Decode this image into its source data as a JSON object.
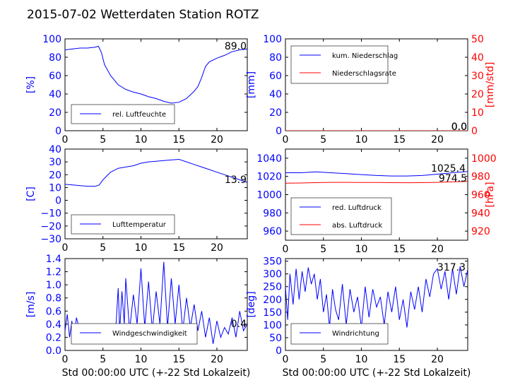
{
  "title": "2015-07-02 Wetterdaten Station ROTZ",
  "xlabel": "Std 00:00:00 UTC (+-22 Std Lokalzeit)",
  "colors": {
    "blue": "#0000ff",
    "red": "#ff0000",
    "black": "#000000"
  },
  "chart_data": [
    {
      "type": "line",
      "ylabel": "[%]",
      "ylim": [
        0,
        100
      ],
      "yticks": [
        "0",
        "20",
        "40",
        "60",
        "80",
        "100"
      ],
      "xlim": [
        0,
        24
      ],
      "xticks": [
        "0",
        "5",
        "10",
        "15",
        "20"
      ],
      "legend": [
        "rel. Luftfeuchte"
      ],
      "annotation": "89.0",
      "series": [
        {
          "name": "rel. Luftfeuchte",
          "color": "blue",
          "x": [
            0,
            1,
            2,
            3,
            4,
            4.4,
            4.8,
            5.2,
            6,
            7,
            8,
            9,
            10,
            11,
            12,
            13,
            14,
            15,
            16,
            17,
            17.5,
            18,
            18.5,
            19,
            20,
            21,
            22,
            23,
            24
          ],
          "values": [
            88,
            89,
            90,
            90,
            91,
            92,
            85,
            72,
            60,
            50,
            45,
            42,
            40,
            37,
            35,
            32,
            30,
            31,
            35,
            43,
            48,
            58,
            70,
            75,
            79,
            82,
            86,
            88,
            89
          ]
        }
      ]
    },
    {
      "type": "line",
      "ylabel": "[mm]",
      "ylim": [
        0,
        100
      ],
      "yticks": [
        "0",
        "20",
        "40",
        "60",
        "80",
        "100"
      ],
      "ylabel2": "[mm/std]",
      "ylim2": [
        0,
        50
      ],
      "yticks2": [
        "0",
        "10",
        "20",
        "30",
        "40",
        "50"
      ],
      "xlim": [
        0,
        24
      ],
      "xticks": [
        "0",
        "5",
        "10",
        "15",
        "20"
      ],
      "legend": [
        "kum. Niederschlag",
        "Niederschlagsrate"
      ],
      "annotation": "0.0",
      "annotation2": "0.0",
      "series": [
        {
          "name": "kum. Niederschlag",
          "color": "blue",
          "x": [
            0,
            24
          ],
          "values": [
            0,
            0
          ]
        },
        {
          "name": "Niederschlagsrate",
          "color": "red",
          "axis": 2,
          "x": [
            0,
            24
          ],
          "values": [
            0,
            0
          ]
        }
      ]
    },
    {
      "type": "line",
      "ylabel": "[C]",
      "ylim": [
        -30,
        40
      ],
      "yticks": [
        "−30",
        "−20",
        "−10",
        "0",
        "10",
        "20",
        "30",
        "40"
      ],
      "xlim": [
        0,
        24
      ],
      "xticks": [
        "0",
        "5",
        "10",
        "15",
        "20"
      ],
      "legend": [
        "Lufttemperatur"
      ],
      "annotation": "13.9",
      "series": [
        {
          "name": "Lufttemperatur",
          "color": "blue",
          "x": [
            0,
            1,
            2,
            3,
            4,
            4.5,
            5,
            5.5,
            6,
            7,
            8,
            9,
            10,
            11,
            12,
            13,
            14,
            15,
            16,
            17,
            18,
            19,
            20,
            21,
            22,
            23,
            24
          ],
          "values": [
            12.5,
            12,
            11.5,
            11,
            11,
            12,
            16,
            19,
            22,
            25,
            26,
            27,
            29,
            30,
            30.5,
            31,
            31.5,
            32,
            30,
            28,
            26,
            24,
            22,
            20,
            18,
            16,
            14
          ]
        }
      ]
    },
    {
      "type": "line",
      "ylim": [
        950,
        1050
      ],
      "yticks": [
        "960",
        "980",
        "1000",
        "1020",
        "1040"
      ],
      "ylabel2": "[hPa]",
      "ylim2": [
        910,
        1010
      ],
      "yticks2": [
        "920",
        "940",
        "960",
        "980",
        "1000"
      ],
      "xlim": [
        0,
        24
      ],
      "xticks": [
        "0",
        "5",
        "10",
        "15",
        "20"
      ],
      "legend": [
        "red. Luftdruck",
        "abs. Luftdruck"
      ],
      "annotation": "1025.4",
      "annotation2": "974.5",
      "series": [
        {
          "name": "red. Luftdruck",
          "color": "blue",
          "x": [
            0,
            2,
            4,
            6,
            8,
            10,
            12,
            14,
            16,
            18,
            20,
            22,
            24
          ],
          "values": [
            1024,
            1024,
            1025,
            1024,
            1023,
            1022,
            1021,
            1020.5,
            1020.5,
            1021,
            1022.5,
            1024,
            1025.4
          ]
        },
        {
          "name": "abs. Luftdruck",
          "color": "red",
          "axis": 2,
          "x": [
            0,
            2,
            4,
            6,
            8,
            10,
            12,
            14,
            16,
            18,
            20,
            22,
            24
          ],
          "values": [
            972.6,
            972.8,
            973.2,
            973.5,
            973.5,
            973.4,
            973.3,
            973.2,
            973.1,
            973.2,
            973.5,
            974,
            974.5
          ]
        }
      ]
    },
    {
      "type": "line",
      "ylabel": "[m/s]",
      "ylim": [
        0,
        1.4
      ],
      "yticks": [
        "0.0",
        "0.2",
        "0.4",
        "0.6",
        "0.8",
        "1.0",
        "1.2",
        "1.4"
      ],
      "xlim": [
        0,
        24
      ],
      "xticks": [
        "0",
        "5",
        "10",
        "15",
        "20"
      ],
      "legend": [
        "Windgeschwindigkeit"
      ],
      "annotation": "0.4",
      "series": [
        {
          "name": "Windgeschwindigkeit",
          "color": "blue",
          "x": [
            0,
            0.3,
            0.6,
            0.9,
            1.2,
            1.5,
            2,
            2.5,
            3,
            3.5,
            4,
            4.5,
            5,
            5.5,
            6,
            6.3,
            6.6,
            7,
            7.2,
            7.5,
            7.8,
            8,
            8.5,
            9,
            9.5,
            10,
            10.5,
            11,
            11.5,
            12,
            12.5,
            13,
            13.5,
            14,
            14.5,
            15,
            15.5,
            16,
            16.5,
            17,
            17.5,
            18,
            18.5,
            19,
            19.5,
            20,
            20.5,
            21,
            21.5,
            22,
            22.5,
            23,
            23.5,
            24
          ],
          "values": [
            0.3,
            0.55,
            0.2,
            0.45,
            0.15,
            0.5,
            0.3,
            0.25,
            0.35,
            0.2,
            0.3,
            0.15,
            0.2,
            0.1,
            0.2,
            0.4,
            0.15,
            0.95,
            0.3,
            0.9,
            0.4,
            1.1,
            0.3,
            0.85,
            0.4,
            1.25,
            0.35,
            1.05,
            0.3,
            0.9,
            0.4,
            1.35,
            0.35,
            1.1,
            0.4,
            1.0,
            0.3,
            0.8,
            0.35,
            0.7,
            0.3,
            0.6,
            0.2,
            0.5,
            0.1,
            0.45,
            0.2,
            0.35,
            0.25,
            0.5,
            0.2,
            0.6,
            0.3,
            0.4
          ]
        }
      ]
    },
    {
      "type": "line",
      "ylabel": "[deg]",
      "ylim": [
        0,
        360
      ],
      "yticks": [
        "0",
        "50",
        "100",
        "150",
        "200",
        "250",
        "300",
        "350"
      ],
      "xlim": [
        0,
        24
      ],
      "xticks": [
        "0",
        "5",
        "10",
        "15",
        "20"
      ],
      "legend": [
        "Windrichtung"
      ],
      "annotation": "317.3",
      "series": [
        {
          "name": "Windrichtung",
          "color": "blue",
          "x": [
            0,
            0.3,
            0.6,
            1,
            1.4,
            1.8,
            2.2,
            2.6,
            3,
            3.4,
            3.8,
            4.2,
            4.6,
            5,
            5.4,
            5.8,
            6.2,
            6.6,
            7,
            7.5,
            8,
            8.5,
            9,
            9.5,
            10,
            10.5,
            11,
            11.5,
            12,
            12.5,
            13,
            13.5,
            14,
            14.5,
            15,
            15.5,
            16,
            16.5,
            17,
            17.5,
            18,
            18.5,
            19,
            19.5,
            20,
            20.5,
            21,
            21.5,
            22,
            22.5,
            23,
            23.5,
            24
          ],
          "values": [
            250,
            120,
            300,
            180,
            320,
            200,
            310,
            230,
            325,
            260,
            300,
            200,
            280,
            150,
            220,
            90,
            240,
            160,
            120,
            260,
            100,
            240,
            150,
            210,
            90,
            250,
            130,
            240,
            170,
            210,
            100,
            230,
            150,
            250,
            120,
            200,
            90,
            230,
            160,
            250,
            150,
            280,
            210,
            300,
            320,
            240,
            310,
            200,
            320,
            220,
            330,
            250,
            317
          ]
        }
      ]
    }
  ]
}
